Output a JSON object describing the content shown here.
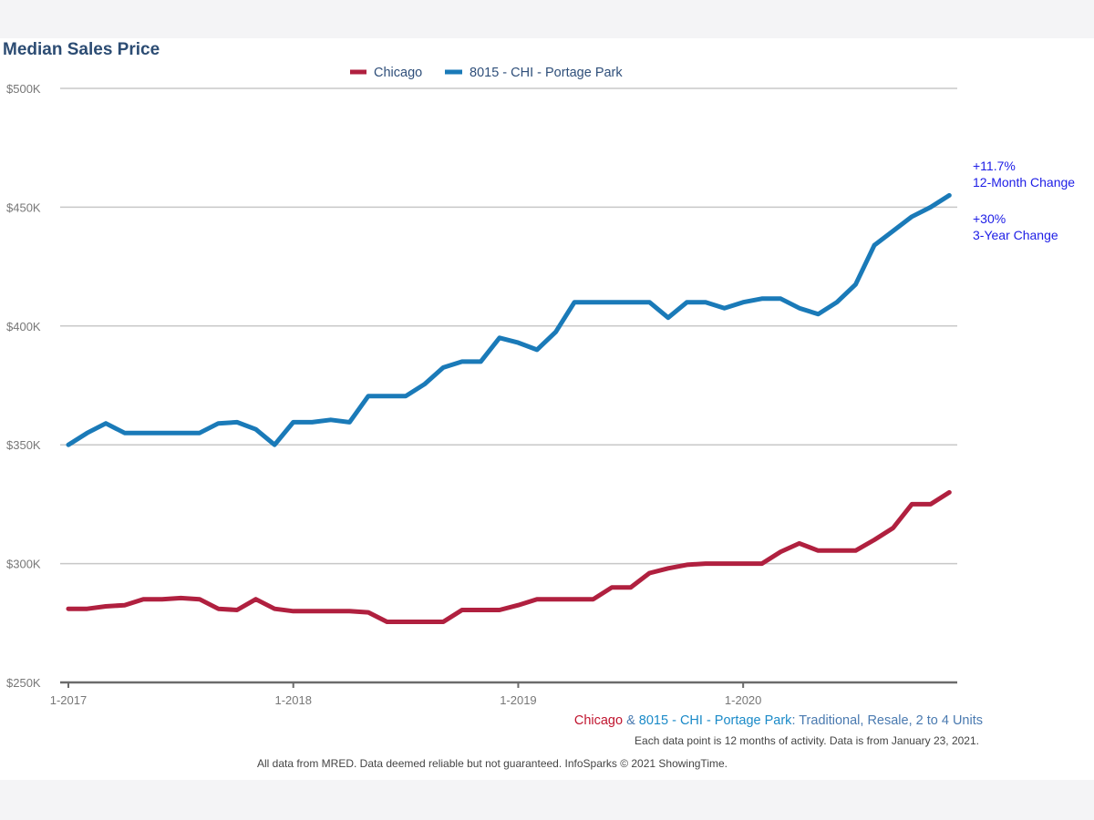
{
  "chart_data": {
    "type": "line",
    "title": "Median Sales Price",
    "xlabel": "",
    "ylabel": "",
    "ylim": [
      250000,
      500000
    ],
    "yticks": [
      250000,
      300000,
      350000,
      400000,
      450000,
      500000
    ],
    "ytick_labels": [
      "$250K",
      "$300K",
      "$350K",
      "$400K",
      "$450K",
      "$500K"
    ],
    "xticks": [
      "1-2017",
      "1-2018",
      "1-2019",
      "1-2020"
    ],
    "x_start": "2017-01",
    "x_end": "2020-12",
    "x_unit": "month",
    "grid": true,
    "legend_position": "top-center",
    "series": [
      {
        "name": "Chicago",
        "color": "#b0203f",
        "values": [
          281000,
          281000,
          282000,
          282500,
          285000,
          285000,
          285500,
          285000,
          281000,
          280500,
          285000,
          281000,
          280000,
          280000,
          280000,
          280000,
          279500,
          275500,
          275500,
          275500,
          275500,
          280500,
          280500,
          280500,
          282500,
          285000,
          285000,
          285000,
          285000,
          290000,
          290000,
          296000,
          298000,
          299500,
          300000,
          300000,
          300000,
          300000,
          305000,
          308500,
          305500,
          305500,
          305500,
          310000,
          315000,
          325000,
          325000,
          330000
        ]
      },
      {
        "name": "8015 - CHI - Portage Park",
        "color": "#1a7ab8",
        "values": [
          350000,
          355000,
          359000,
          355000,
          355000,
          355000,
          355000,
          355000,
          359000,
          359500,
          356500,
          350000,
          359500,
          359500,
          360500,
          359500,
          370500,
          370500,
          370500,
          375500,
          382500,
          385000,
          385000,
          395000,
          393000,
          390000,
          397500,
          410000,
          410000,
          410000,
          410000,
          410000,
          403500,
          410000,
          410000,
          407500,
          410000,
          411500,
          411500,
          407500,
          405000,
          410000,
          417500,
          434000,
          440000,
          446000,
          450000,
          455000
        ]
      }
    ],
    "annotations": [
      {
        "value": "+11.7%",
        "label": "12-Month Change"
      },
      {
        "value": "+30%",
        "label": "3-Year Change"
      }
    ],
    "subtitle_parts": [
      {
        "text": "Chicago",
        "color": "#c0152f"
      },
      {
        "text": " & ",
        "color": "#4a7ab0"
      },
      {
        "text": "8015 - CHI - Portage Park",
        "color": "#1a8ac8"
      },
      {
        "text": ": Traditional, Resale, 2 to 4 Units",
        "color": "#4a7ab0"
      }
    ],
    "note": "Each data point is 12 months of activity. Data is from January 23, 2021.",
    "footer": "All data from MRED. Data deemed reliable but not guaranteed. InfoSparks © 2021 ShowingTime."
  }
}
